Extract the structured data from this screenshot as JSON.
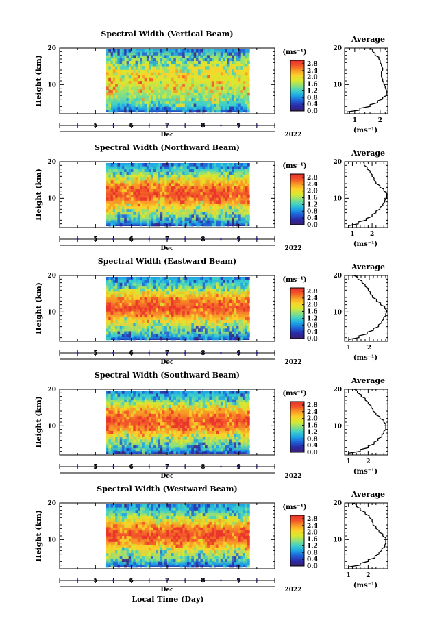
{
  "figure": {
    "xlabel": "Local Time (Day)",
    "month": "Dec",
    "year": "2022",
    "x_ticks": [
      "5",
      "6",
      "7",
      "8",
      "9"
    ],
    "x_range_days": [
      4.0,
      10.0
    ],
    "data_start_day": 5.3,
    "data_end_day": 9.3
  },
  "colormap": {
    "stops": [
      "#3b1f6b",
      "#2a2aa8",
      "#1f5fd6",
      "#1ca3e6",
      "#3fd0c8",
      "#8ee07a",
      "#d8e830",
      "#fbd22a",
      "#f79a24",
      "#f2522a",
      "#e8302c"
    ]
  },
  "chart_data": [
    {
      "type": "heatmap",
      "title": "Spectral Width (Vertical Beam)",
      "ylabel": "Height (km)",
      "y_ticks": [
        "10",
        "20"
      ],
      "ylim": [
        2,
        20
      ],
      "colorbar": {
        "label": "(ms⁻¹)",
        "ticks": [
          "0.0",
          "0.4",
          "0.8",
          "1.2",
          "1.6",
          "2.0",
          "2.4",
          "2.8"
        ],
        "range": [
          0.0,
          3.0
        ]
      },
      "profile": {
        "title": "Average",
        "xlabel": "(ms⁻¹)",
        "x_ticks": [
          "1",
          "2"
        ],
        "xlim": [
          0.6,
          2.3
        ],
        "height_km": [
          2,
          3,
          4,
          5,
          6,
          7,
          8,
          9,
          10,
          11,
          12,
          13,
          14,
          15,
          16,
          17,
          18,
          19,
          20
        ],
        "width_ms": [
          0.7,
          1.2,
          1.6,
          1.9,
          2.1,
          2.25,
          2.25,
          2.2,
          2.15,
          2.1,
          2.05,
          2.05,
          2.1,
          2.05,
          2.0,
          1.95,
          1.8,
          1.7,
          1.6
        ]
      }
    },
    {
      "type": "heatmap",
      "title": "Spectral Width (Northward Beam)",
      "ylabel": "Height (km)",
      "y_ticks": [
        "10",
        "20"
      ],
      "ylim": [
        2,
        20
      ],
      "colorbar": {
        "label": "(ms⁻¹)",
        "ticks": [
          "0.0",
          "0.4",
          "0.8",
          "1.2",
          "1.6",
          "2.0",
          "2.4",
          "2.8"
        ],
        "range": [
          0.0,
          3.0
        ]
      },
      "profile": {
        "title": "Average",
        "xlabel": "(ms⁻¹)",
        "x_ticks": [
          "1",
          "2"
        ],
        "xlim": [
          0.6,
          2.8
        ],
        "height_km": [
          2,
          3,
          4,
          5,
          6,
          7,
          8,
          9,
          10,
          11,
          12,
          13,
          14,
          15,
          16,
          17,
          18,
          19,
          20
        ],
        "width_ms": [
          0.8,
          1.3,
          1.7,
          2.0,
          2.2,
          2.4,
          2.55,
          2.65,
          2.75,
          2.75,
          2.6,
          2.4,
          2.2,
          2.1,
          2.0,
          1.9,
          1.75,
          1.6,
          1.55
        ]
      }
    },
    {
      "type": "heatmap",
      "title": "Spectral Width (Eastward Beam)",
      "ylabel": "Height (km)",
      "y_ticks": [
        "10",
        "20"
      ],
      "ylim": [
        2,
        20
      ],
      "colorbar": {
        "label": "(ms⁻¹)",
        "ticks": [
          "0.0",
          "0.4",
          "0.8",
          "1.2",
          "1.6",
          "2.0",
          "2.4",
          "2.8"
        ],
        "range": [
          0.0,
          3.0
        ]
      },
      "profile": {
        "title": "Average",
        "xlabel": "(ms⁻¹)",
        "x_ticks": [
          "1",
          "2"
        ],
        "xlim": [
          0.8,
          2.9
        ],
        "height_km": [
          2,
          3,
          4,
          5,
          6,
          7,
          8,
          9,
          10,
          11,
          12,
          13,
          14,
          15,
          16,
          17,
          18,
          19,
          20
        ],
        "width_ms": [
          1.0,
          1.5,
          1.9,
          2.2,
          2.45,
          2.6,
          2.7,
          2.8,
          2.85,
          2.75,
          2.55,
          2.35,
          2.15,
          2.05,
          1.95,
          1.8,
          1.65,
          1.45,
          1.25
        ]
      }
    },
    {
      "type": "heatmap",
      "title": "Spectral Width (Southward Beam)",
      "ylabel": "Height (km)",
      "y_ticks": [
        "10",
        "20"
      ],
      "ylim": [
        2,
        20
      ],
      "colorbar": {
        "label": "(ms⁻¹)",
        "ticks": [
          "0.0",
          "0.4",
          "0.8",
          "1.2",
          "1.6",
          "2.0",
          "2.4",
          "2.8"
        ],
        "range": [
          0.0,
          3.0
        ]
      },
      "profile": {
        "title": "Average",
        "xlabel": "(ms⁻¹)",
        "x_ticks": [
          "1",
          "2"
        ],
        "xlim": [
          0.8,
          3.0
        ],
        "height_km": [
          2,
          3,
          4,
          5,
          6,
          7,
          8,
          9,
          10,
          11,
          12,
          13,
          14,
          15,
          16,
          17,
          18,
          19,
          20
        ],
        "width_ms": [
          1.0,
          1.6,
          2.0,
          2.3,
          2.5,
          2.7,
          2.8,
          2.9,
          2.9,
          2.8,
          2.6,
          2.4,
          2.25,
          2.15,
          2.0,
          1.85,
          1.65,
          1.45,
          1.3
        ]
      }
    },
    {
      "type": "heatmap",
      "title": "Spectral Width (Westward Beam)",
      "ylabel": "Height (km)",
      "y_ticks": [
        "10",
        "20"
      ],
      "ylim": [
        2,
        20
      ],
      "colorbar": {
        "label": "(ms⁻¹)",
        "ticks": [
          "0.0",
          "0.4",
          "0.8",
          "1.2",
          "1.6",
          "2.0",
          "2.4",
          "2.8"
        ],
        "range": [
          0.0,
          3.0
        ]
      },
      "profile": {
        "title": "Average",
        "xlabel": "(ms⁻¹)",
        "x_ticks": [
          "1",
          "2"
        ],
        "xlim": [
          0.8,
          3.0
        ],
        "height_km": [
          2,
          3,
          4,
          5,
          6,
          7,
          8,
          9,
          10,
          11,
          12,
          13,
          14,
          15,
          16,
          17,
          18,
          19,
          20
        ],
        "width_ms": [
          1.0,
          1.6,
          2.0,
          2.35,
          2.55,
          2.7,
          2.85,
          2.9,
          2.9,
          2.75,
          2.55,
          2.4,
          2.25,
          2.2,
          2.05,
          1.85,
          1.6,
          1.4,
          1.25
        ]
      }
    }
  ]
}
